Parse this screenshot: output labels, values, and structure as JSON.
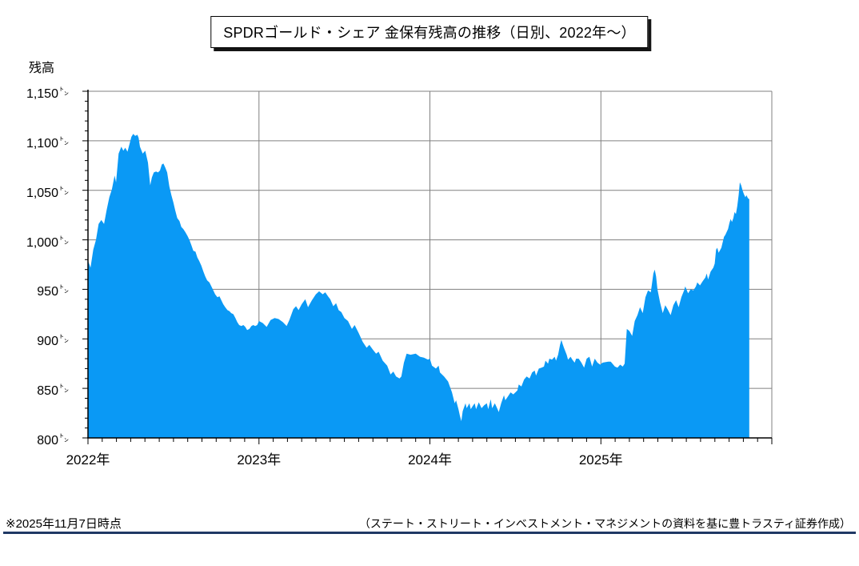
{
  "title": "SPDRゴールド・シェア 金保有残高の推移（日別、2022年～）",
  "y_axis_title": "残高",
  "footer": {
    "left_note": "※2025年11月7日時点",
    "right_note": "（ステート・ストリート・インベストメント・マネジメントの資料を基に豊トラスティ証券作成）"
  },
  "colors": {
    "area_fill": "#0a99f5",
    "gridline": "#808080",
    "axis": "#000000",
    "footer_rule": "#1f3864"
  },
  "chart_data": {
    "type": "area",
    "title": "SPDRゴールド・シェア 金保有残高の推移（日別、2022年～）",
    "xlabel": "",
    "ylabel": "残高",
    "unit": "トン",
    "unit_glyph": "㌧",
    "xlim": [
      2022,
      2026
    ],
    "ylim": [
      800,
      1150
    ],
    "grid": true,
    "legend": "none",
    "y_ticks": [
      {
        "value": 1150,
        "label": "1,150"
      },
      {
        "value": 1100,
        "label": "1,100"
      },
      {
        "value": 1050,
        "label": "1,050"
      },
      {
        "value": 1000,
        "label": "1,000"
      },
      {
        "value": 950,
        "label": "950"
      },
      {
        "value": 900,
        "label": "900"
      },
      {
        "value": 850,
        "label": "850"
      },
      {
        "value": 800,
        "label": "800"
      }
    ],
    "y_gridlines": [
      850,
      900,
      950,
      1000,
      1050,
      1100,
      1150
    ],
    "y_minor_step": 10,
    "x_ticks": [
      {
        "value": 2022,
        "label": "2022年"
      },
      {
        "value": 2023,
        "label": "2023年"
      },
      {
        "value": 2024,
        "label": "2024年"
      },
      {
        "value": 2025,
        "label": "2025年"
      }
    ],
    "x_gridlines": [
      2023,
      2024,
      2025,
      2026
    ],
    "x_minor_step": 0.0833333,
    "series": [
      {
        "name": "金保有残高",
        "points": [
          [
            2022.0,
            979
          ],
          [
            2022.015,
            972
          ],
          [
            2022.031,
            990
          ],
          [
            2022.047,
            1000
          ],
          [
            2022.062,
            1016
          ],
          [
            2022.078,
            1020
          ],
          [
            2022.094,
            1016
          ],
          [
            2022.109,
            1030
          ],
          [
            2022.125,
            1043
          ],
          [
            2022.14,
            1051
          ],
          [
            2022.156,
            1065
          ],
          [
            2022.164,
            1058
          ],
          [
            2022.179,
            1087
          ],
          [
            2022.195,
            1094
          ],
          [
            2022.207,
            1090
          ],
          [
            2022.218,
            1093
          ],
          [
            2022.231,
            1089
          ],
          [
            2022.242,
            1096
          ],
          [
            2022.254,
            1104
          ],
          [
            2022.265,
            1107
          ],
          [
            2022.276,
            1105
          ],
          [
            2022.289,
            1106
          ],
          [
            2022.296,
            1103
          ],
          [
            2022.304,
            1094
          ],
          [
            2022.32,
            1087
          ],
          [
            2022.335,
            1090
          ],
          [
            2022.351,
            1078
          ],
          [
            2022.364,
            1055
          ],
          [
            2022.374,
            1063
          ],
          [
            2022.385,
            1068
          ],
          [
            2022.398,
            1069
          ],
          [
            2022.41,
            1068
          ],
          [
            2022.421,
            1070
          ],
          [
            2022.432,
            1076
          ],
          [
            2022.441,
            1077
          ],
          [
            2022.452,
            1073
          ],
          [
            2022.463,
            1068
          ],
          [
            2022.476,
            1054
          ],
          [
            2022.488,
            1045
          ],
          [
            2022.499,
            1038
          ],
          [
            2022.51,
            1030
          ],
          [
            2022.522,
            1022
          ],
          [
            2022.535,
            1019
          ],
          [
            2022.546,
            1013
          ],
          [
            2022.557,
            1011
          ],
          [
            2022.569,
            1008
          ],
          [
            2022.582,
            1004
          ],
          [
            2022.593,
            1000
          ],
          [
            2022.604,
            995
          ],
          [
            2022.616,
            989
          ],
          [
            2022.629,
            988
          ],
          [
            2022.64,
            982
          ],
          [
            2022.65,
            979
          ],
          [
            2022.663,
            974
          ],
          [
            2022.675,
            968
          ],
          [
            2022.686,
            963
          ],
          [
            2022.697,
            959
          ],
          [
            2022.71,
            957
          ],
          [
            2022.722,
            953
          ],
          [
            2022.733,
            949
          ],
          [
            2022.744,
            945
          ],
          [
            2022.757,
            942
          ],
          [
            2022.769,
            943
          ],
          [
            2022.78,
            939
          ],
          [
            2022.791,
            935
          ],
          [
            2022.803,
            932
          ],
          [
            2022.816,
            929
          ],
          [
            2022.827,
            928
          ],
          [
            2022.838,
            926
          ],
          [
            2022.85,
            925
          ],
          [
            2022.862,
            921
          ],
          [
            2022.873,
            917
          ],
          [
            2022.884,
            914
          ],
          [
            2022.897,
            913
          ],
          [
            2022.909,
            914
          ],
          [
            2022.92,
            912
          ],
          [
            2022.931,
            909
          ],
          [
            2022.944,
            910
          ],
          [
            2022.956,
            913
          ],
          [
            2022.967,
            914
          ],
          [
            2022.978,
            913
          ],
          [
            2022.99,
            914
          ],
          [
            2023.0,
            918
          ],
          [
            2023.022,
            916
          ],
          [
            2023.045,
            912
          ],
          [
            2023.068,
            919
          ],
          [
            2023.092,
            921
          ],
          [
            2023.115,
            920
          ],
          [
            2023.139,
            917
          ],
          [
            2023.162,
            913
          ],
          [
            2023.178,
            919
          ],
          [
            2023.201,
            930
          ],
          [
            2023.217,
            933
          ],
          [
            2023.232,
            929
          ],
          [
            2023.25,
            935
          ],
          [
            2023.271,
            940
          ],
          [
            2023.287,
            932
          ],
          [
            2023.31,
            939
          ],
          [
            2023.333,
            945
          ],
          [
            2023.352,
            948
          ],
          [
            2023.373,
            945
          ],
          [
            2023.388,
            947
          ],
          [
            2023.404,
            943
          ],
          [
            2023.417,
            940
          ],
          [
            2023.435,
            933
          ],
          [
            2023.451,
            936
          ],
          [
            2023.466,
            929
          ],
          [
            2023.482,
            927
          ],
          [
            2023.5,
            921
          ],
          [
            2023.521,
            918
          ],
          [
            2023.544,
            910
          ],
          [
            2023.56,
            914
          ],
          [
            2023.583,
            906
          ],
          [
            2023.607,
            897
          ],
          [
            2023.63,
            891
          ],
          [
            2023.646,
            894
          ],
          [
            2023.667,
            889
          ],
          [
            2023.685,
            885
          ],
          [
            2023.7,
            887
          ],
          [
            2023.724,
            878
          ],
          [
            2023.75,
            873
          ],
          [
            2023.77,
            864
          ],
          [
            2023.786,
            867
          ],
          [
            2023.802,
            862
          ],
          [
            2023.822,
            860
          ],
          [
            2023.833,
            862
          ],
          [
            2023.848,
            876
          ],
          [
            2023.864,
            885
          ],
          [
            2023.887,
            884
          ],
          [
            2023.917,
            885
          ],
          [
            2023.942,
            882
          ],
          [
            2023.965,
            881
          ],
          [
            2023.989,
            879
          ],
          [
            2024.0,
            880
          ],
          [
            2024.012,
            873
          ],
          [
            2024.035,
            870
          ],
          [
            2024.051,
            873
          ],
          [
            2024.059,
            866
          ],
          [
            2024.083,
            862
          ],
          [
            2024.106,
            857
          ],
          [
            2024.129,
            846
          ],
          [
            2024.145,
            835
          ],
          [
            2024.153,
            838
          ],
          [
            2024.167,
            829
          ],
          [
            2024.176,
            822
          ],
          [
            2024.184,
            817
          ],
          [
            2024.192,
            827
          ],
          [
            2024.208,
            835
          ],
          [
            2024.215,
            830
          ],
          [
            2024.231,
            835
          ],
          [
            2024.239,
            829
          ],
          [
            2024.25,
            832
          ],
          [
            2024.262,
            835
          ],
          [
            2024.27,
            829
          ],
          [
            2024.286,
            836
          ],
          [
            2024.302,
            830
          ],
          [
            2024.317,
            833
          ],
          [
            2024.333,
            835
          ],
          [
            2024.341,
            829
          ],
          [
            2024.356,
            839
          ],
          [
            2024.364,
            830
          ],
          [
            2024.38,
            835
          ],
          [
            2024.396,
            829
          ],
          [
            2024.403,
            826
          ],
          [
            2024.417,
            835
          ],
          [
            2024.433,
            843
          ],
          [
            2024.441,
            838
          ],
          [
            2024.457,
            842
          ],
          [
            2024.472,
            846
          ],
          [
            2024.488,
            844
          ],
          [
            2024.5,
            846
          ],
          [
            2024.512,
            848
          ],
          [
            2024.52,
            854
          ],
          [
            2024.535,
            852
          ],
          [
            2024.551,
            859
          ],
          [
            2024.566,
            862
          ],
          [
            2024.583,
            860
          ],
          [
            2024.598,
            866
          ],
          [
            2024.613,
            868
          ],
          [
            2024.621,
            863
          ],
          [
            2024.637,
            870
          ],
          [
            2024.653,
            871
          ],
          [
            2024.667,
            872
          ],
          [
            2024.676,
            878
          ],
          [
            2024.691,
            875
          ],
          [
            2024.699,
            880
          ],
          [
            2024.714,
            879
          ],
          [
            2024.73,
            882
          ],
          [
            2024.738,
            878
          ],
          [
            2024.75,
            884
          ],
          [
            2024.761,
            894
          ],
          [
            2024.769,
            899
          ],
          [
            2024.776,
            895
          ],
          [
            2024.784,
            891
          ],
          [
            2024.8,
            884
          ],
          [
            2024.808,
            879
          ],
          [
            2024.823,
            882
          ],
          [
            2024.833,
            879
          ],
          [
            2024.847,
            876
          ],
          [
            2024.855,
            880
          ],
          [
            2024.87,
            880
          ],
          [
            2024.886,
            876
          ],
          [
            2024.902,
            871
          ],
          [
            2024.917,
            880
          ],
          [
            2024.933,
            882
          ],
          [
            2024.949,
            872
          ],
          [
            2024.964,
            880
          ],
          [
            2024.98,
            876
          ],
          [
            2024.996,
            874
          ],
          [
            2025.01,
            876
          ],
          [
            2025.043,
            877
          ],
          [
            2025.058,
            877
          ],
          [
            2025.082,
            872
          ],
          [
            2025.097,
            871
          ],
          [
            2025.113,
            874
          ],
          [
            2025.128,
            872
          ],
          [
            2025.139,
            875
          ],
          [
            2025.152,
            910
          ],
          [
            2025.167,
            908
          ],
          [
            2025.183,
            903
          ],
          [
            2025.198,
            918
          ],
          [
            2025.214,
            924
          ],
          [
            2025.229,
            932
          ],
          [
            2025.245,
            926
          ],
          [
            2025.261,
            942
          ],
          [
            2025.276,
            949
          ],
          [
            2025.292,
            947
          ],
          [
            2025.307,
            966
          ],
          [
            2025.315,
            970
          ],
          [
            2025.323,
            963
          ],
          [
            2025.331,
            950
          ],
          [
            2025.346,
            937
          ],
          [
            2025.362,
            926
          ],
          [
            2025.377,
            934
          ],
          [
            2025.393,
            929
          ],
          [
            2025.408,
            924
          ],
          [
            2025.424,
            934
          ],
          [
            2025.44,
            939
          ],
          [
            2025.455,
            932
          ],
          [
            2025.471,
            942
          ],
          [
            2025.487,
            949
          ],
          [
            2025.494,
            953
          ],
          [
            2025.51,
            946
          ],
          [
            2025.525,
            950
          ],
          [
            2025.541,
            949
          ],
          [
            2025.556,
            953
          ],
          [
            2025.564,
            957
          ],
          [
            2025.58,
            954
          ],
          [
            2025.595,
            958
          ],
          [
            2025.611,
            962
          ],
          [
            2025.619,
            966
          ],
          [
            2025.627,
            960
          ],
          [
            2025.642,
            968
          ],
          [
            2025.658,
            972
          ],
          [
            2025.666,
            976
          ],
          [
            2025.674,
            990
          ],
          [
            2025.681,
            992
          ],
          [
            2025.689,
            987
          ],
          [
            2025.705,
            992
          ],
          [
            2025.72,
            1003
          ],
          [
            2025.728,
            1005
          ],
          [
            2025.744,
            1011
          ],
          [
            2025.752,
            1017
          ],
          [
            2025.759,
            1021
          ],
          [
            2025.767,
            1018
          ],
          [
            2025.775,
            1022
          ],
          [
            2025.782,
            1028
          ],
          [
            2025.79,
            1026
          ],
          [
            2025.798,
            1034
          ],
          [
            2025.806,
            1045
          ],
          [
            2025.813,
            1058
          ],
          [
            2025.821,
            1055
          ],
          [
            2025.829,
            1050
          ],
          [
            2025.837,
            1046
          ],
          [
            2025.845,
            1043
          ],
          [
            2025.852,
            1045
          ],
          [
            2025.86,
            1042
          ],
          [
            2025.868,
            1041
          ]
        ]
      }
    ]
  }
}
